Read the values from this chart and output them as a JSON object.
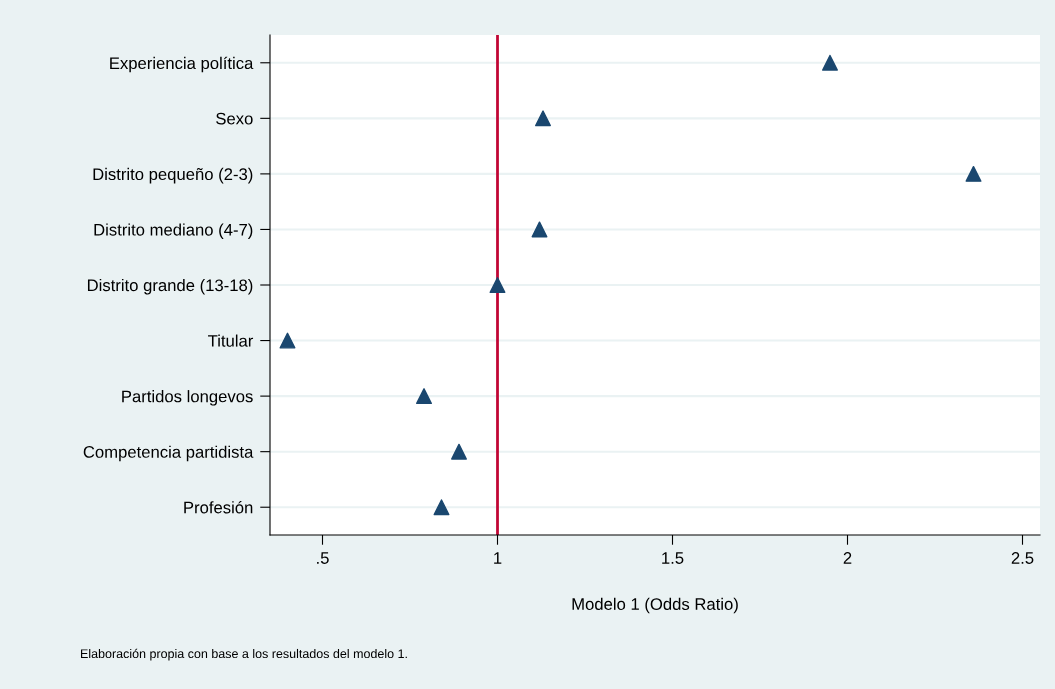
{
  "chart_data": {
    "type": "scatter",
    "orientation": "horizontal",
    "xlabel": "Modelo 1 (Odds Ratio)",
    "categories": [
      "Experiencia política",
      "Sexo",
      "Distrito pequeño (2-3)",
      "Distrito mediano (4-7)",
      "Distrito grande (13-18)",
      "Titular",
      "Partidos longevos",
      "Competencia partidista",
      "Profesión"
    ],
    "series": [
      {
        "color": "#1a476f",
        "values": [
          1.95,
          1.13,
          2.36,
          1.12,
          1.0,
          0.4,
          0.79,
          0.89,
          0.84
        ]
      }
    ],
    "xlim": [
      0.35,
      2.55
    ],
    "xticks": [
      {
        "value": 0.5,
        "label": ".5"
      },
      1,
      1.5,
      2,
      2.5
    ],
    "ref_lines": [
      {
        "axis": "x",
        "value": 1,
        "color": "#c10534"
      }
    ],
    "grid": "y",
    "marker": "triangle",
    "legend": false,
    "annotations": [
      "Elaboración propia con base a los resultados del modelo 1."
    ]
  }
}
